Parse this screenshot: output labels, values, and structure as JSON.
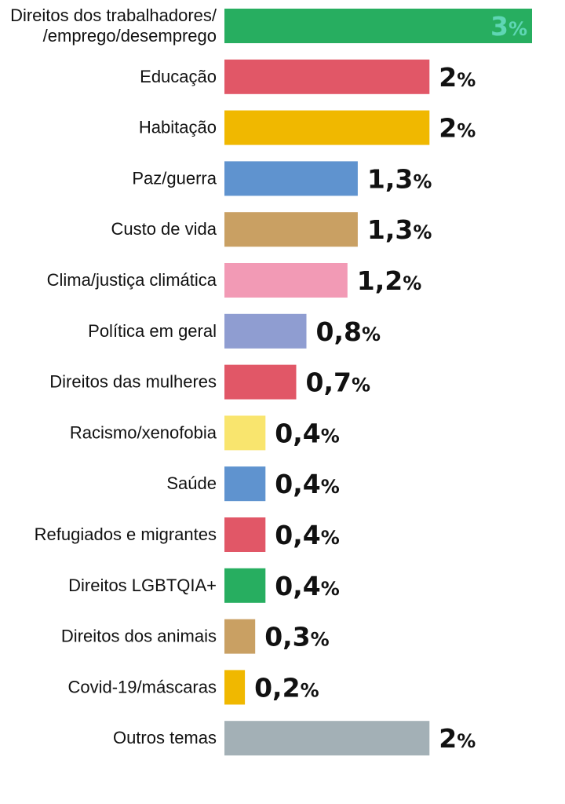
{
  "chart_data": {
    "type": "bar",
    "orientation": "horizontal",
    "categories": [
      [
        "Direitos dos trabalhadores/",
        "/emprego/desemprego"
      ],
      [
        "Educação"
      ],
      [
        "Habitação"
      ],
      [
        "Paz/guerra"
      ],
      [
        "Custo de vida"
      ],
      [
        "Clima/justiça climática"
      ],
      [
        "Política em geral"
      ],
      [
        "Direitos das mulheres"
      ],
      [
        "Racismo/xenofobia"
      ],
      [
        "Saúde"
      ],
      [
        "Refugiados e migrantes"
      ],
      [
        "Direitos LGBTQIA+"
      ],
      [
        "Direitos dos animais"
      ],
      [
        "Covid-19/máscaras"
      ],
      [
        "Outros temas"
      ]
    ],
    "values": [
      3,
      2,
      2,
      1.3,
      1.3,
      1.2,
      0.8,
      0.7,
      0.4,
      0.4,
      0.4,
      0.4,
      0.3,
      0.2,
      2
    ],
    "value_labels": [
      "3",
      "2",
      "2",
      "1,3",
      "1,3",
      "1,2",
      "0,8",
      "0,7",
      "0,4",
      "0,4",
      "0,4",
      "0,4",
      "0,3",
      "0,2",
      "2"
    ],
    "value_suffix": "%",
    "colors": [
      "#27ae60",
      "#e15767",
      "#f0b800",
      "#5f93cf",
      "#c9a063",
      "#f29ab5",
      "#8f9dd1",
      "#e15767",
      "#f9e56e",
      "#5f93cf",
      "#e15767",
      "#27ae60",
      "#c9a063",
      "#f0b800",
      "#a3b0b6"
    ],
    "label_colors": [
      "#5fd6b4",
      "#111111",
      "#111111",
      "#111111",
      "#111111",
      "#111111",
      "#111111",
      "#111111",
      "#111111",
      "#111111",
      "#111111",
      "#111111",
      "#111111",
      "#111111",
      "#111111"
    ],
    "label_inside": [
      true,
      false,
      false,
      false,
      false,
      false,
      false,
      false,
      false,
      false,
      false,
      false,
      false,
      false,
      false
    ],
    "xlim": [
      0,
      3
    ],
    "title": "",
    "xlabel": "",
    "ylabel": ""
  }
}
